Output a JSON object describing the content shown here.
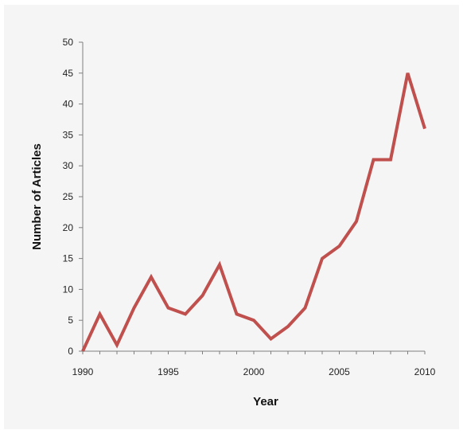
{
  "chart_data": {
    "type": "line",
    "title": "",
    "xlabel": "Year",
    "ylabel": "Number of Articles",
    "xlim": [
      1990,
      2010
    ],
    "ylim": [
      0,
      50
    ],
    "x_ticks": [
      1990,
      1995,
      2000,
      2005,
      2010
    ],
    "y_ticks": [
      0,
      5,
      10,
      15,
      20,
      25,
      30,
      35,
      40,
      45,
      50
    ],
    "grid": false,
    "legend": "none",
    "series": [
      {
        "color": "#c0504d",
        "x": [
          1990,
          1991,
          1992,
          1993,
          1994,
          1995,
          1996,
          1997,
          1998,
          1999,
          2000,
          2001,
          2002,
          2003,
          2004,
          2005,
          2006,
          2007,
          2008,
          2009,
          2010
        ],
        "y": [
          0,
          6,
          1,
          7,
          12,
          7,
          6,
          9,
          14,
          6,
          5,
          2,
          4,
          7,
          15,
          17,
          21,
          31,
          31,
          45,
          36
        ]
      }
    ]
  }
}
